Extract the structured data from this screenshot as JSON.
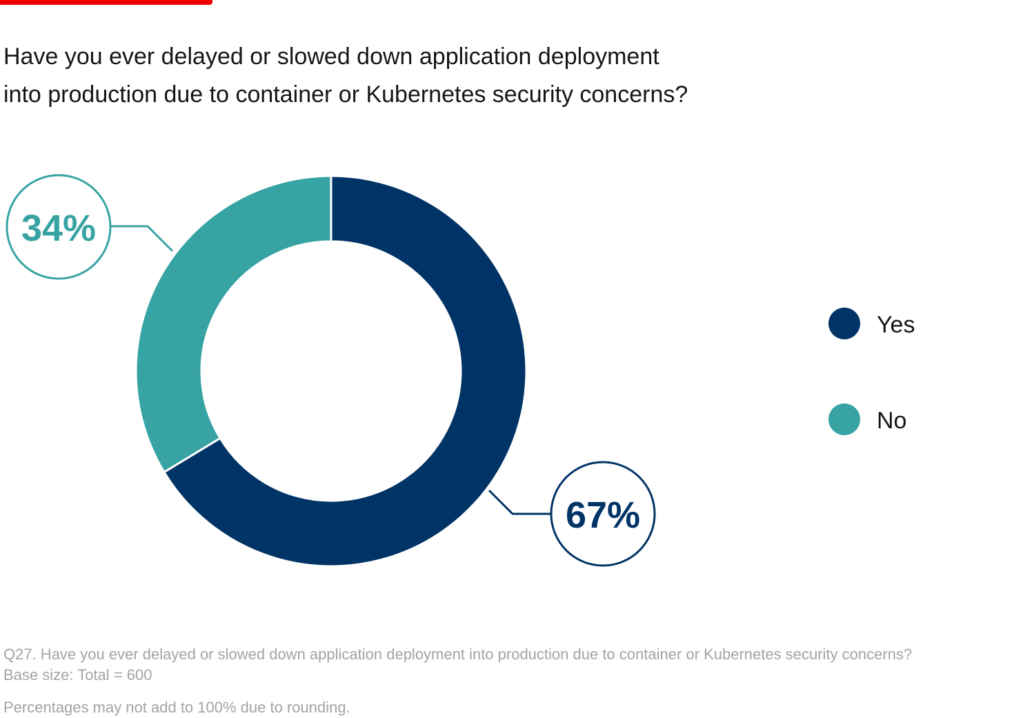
{
  "title_lines": [
    "Have you ever delayed or slowed down application deployment",
    "into production due to container or Kubernetes security concerns?"
  ],
  "chart_data": {
    "type": "pie",
    "donut": true,
    "title": "Have you ever delayed or slowed down application deployment into production due to container or Kubernetes security concerns?",
    "categories": [
      "Yes",
      "No"
    ],
    "values": [
      67,
      34
    ],
    "labels": [
      "67%",
      "34%"
    ],
    "colors": [
      "#003366",
      "#38a3a3"
    ],
    "legend_placement": "right"
  },
  "footnotes": {
    "question": "Q27. Have you ever delayed or slowed down application deployment into production due to container or Kubernetes security concerns?",
    "base": "Base size: Total = 600",
    "rounding": "Percentages may not add to 100% due to rounding."
  },
  "accent_color": "#ee0000"
}
